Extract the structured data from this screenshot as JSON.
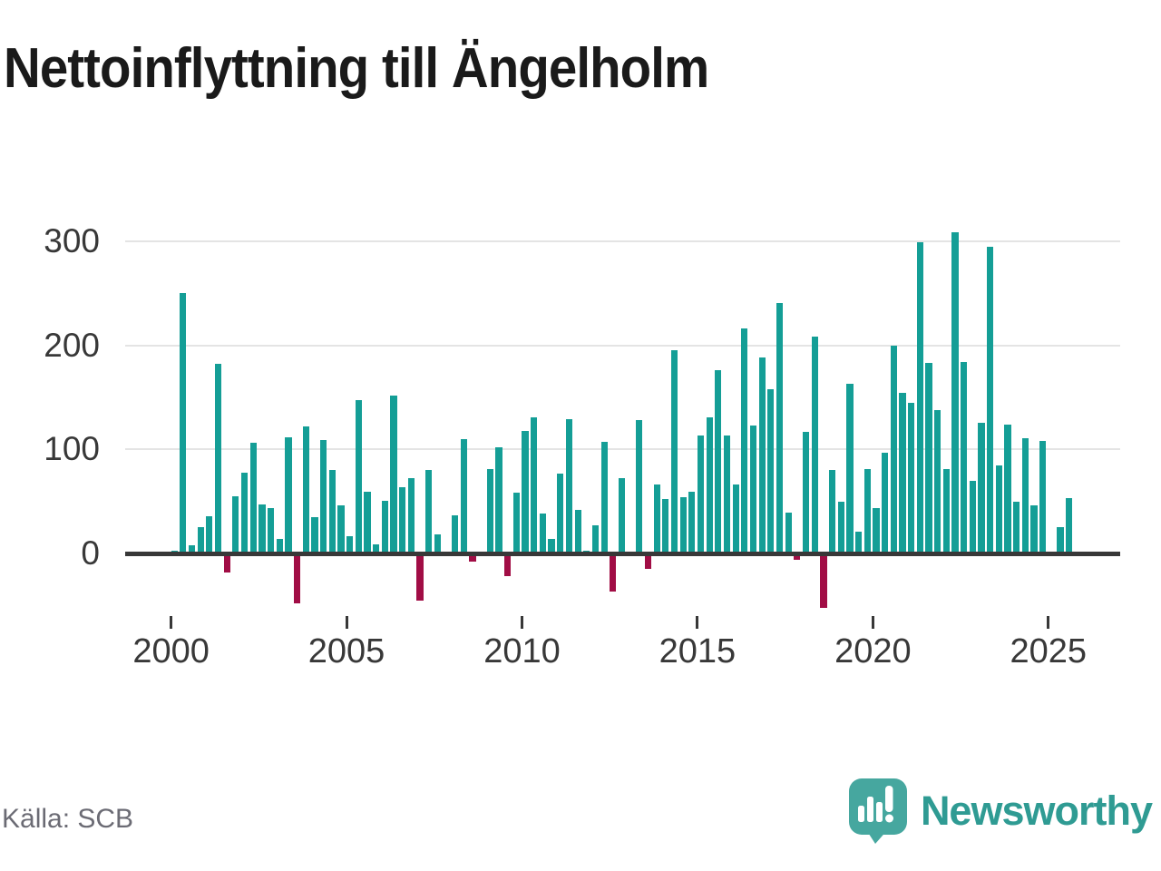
{
  "title": "Nettoinflyttning till Ängelholm",
  "source": {
    "label": "Källa: SCB"
  },
  "brand": {
    "name": "Newsworthy"
  },
  "chart_data": {
    "type": "bar",
    "title": "Nettoinflyttning till Ängelholm",
    "frequency": "quarterly",
    "start": "2000-Q1",
    "end": "2025-Q3",
    "values": [
      3,
      250,
      8,
      25,
      36,
      182,
      -18,
      55,
      78,
      106,
      47,
      44,
      14,
      112,
      -48,
      122,
      35,
      109,
      80,
      46,
      17,
      147,
      59,
      9,
      51,
      152,
      64,
      72,
      -45,
      80,
      18,
      0,
      37,
      110,
      -8,
      0,
      81,
      102,
      -22,
      58,
      118,
      131,
      38,
      14,
      77,
      129,
      42,
      3,
      27,
      107,
      -37,
      72,
      2,
      128,
      -15,
      66,
      52,
      195,
      54,
      59,
      113,
      131,
      176,
      113,
      66,
      216,
      123,
      188,
      158,
      241,
      39,
      -6,
      117,
      208,
      -52,
      80,
      50,
      163,
      21,
      81,
      44,
      97,
      200,
      154,
      145,
      299,
      183,
      138,
      81,
      309,
      184,
      70,
      126,
      295,
      85,
      124,
      50,
      111,
      46,
      108,
      0,
      25,
      53
    ],
    "y_ticks": [
      0,
      100,
      200,
      300
    ],
    "x_ticks": [
      2000,
      2005,
      2010,
      2015,
      2020,
      2025
    ],
    "ylim": [
      -60,
      320
    ],
    "grid": "horizontal",
    "legend": "none",
    "positive_color": "#149e96",
    "negative_color": "#a10d45"
  }
}
